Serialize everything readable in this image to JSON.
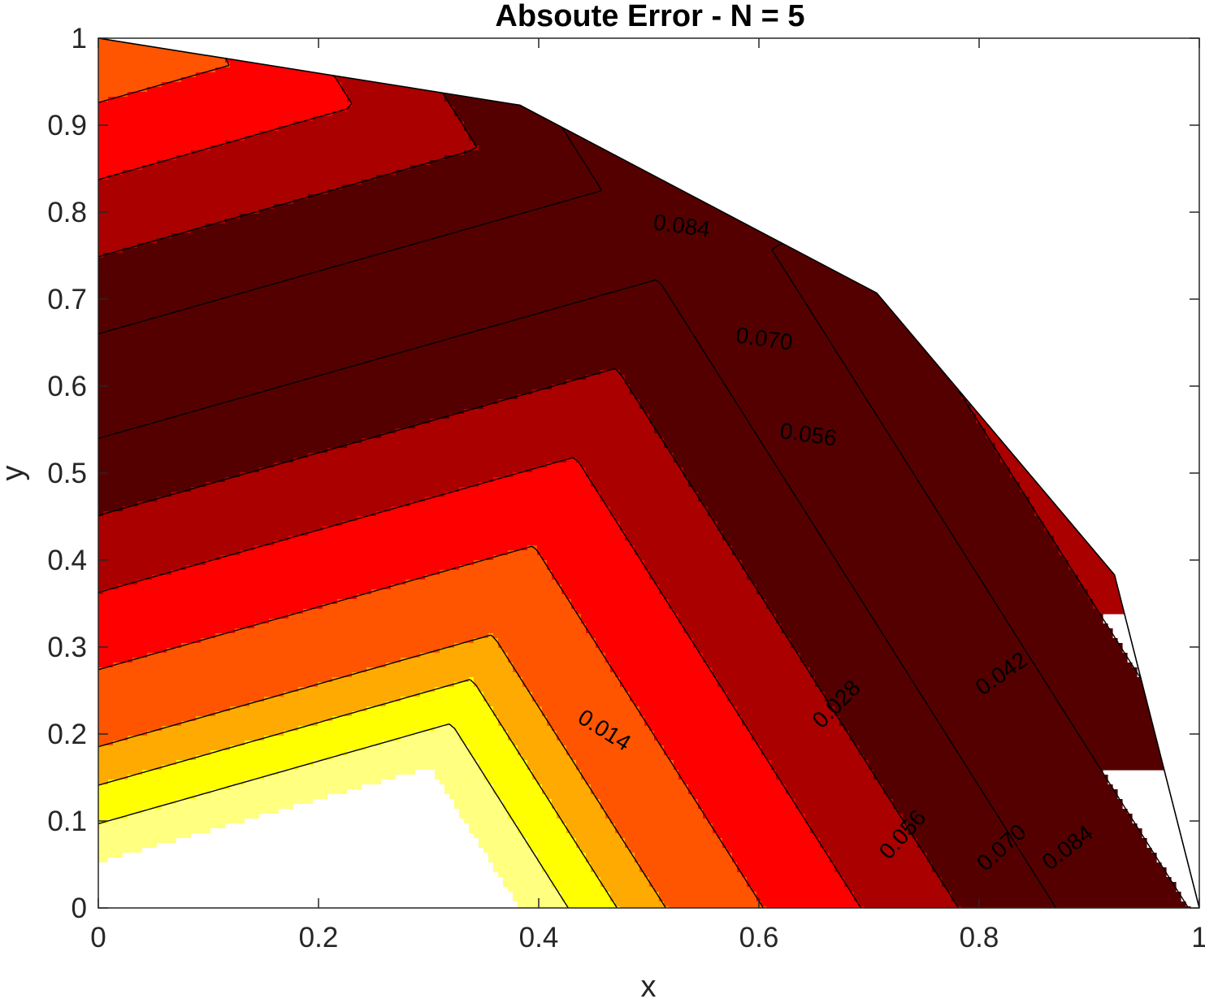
{
  "chart_data": {
    "type": "filled-contour",
    "title": "Absoute Error - N = 5",
    "xlabel": "x",
    "ylabel": "y",
    "xlim": [
      0,
      1
    ],
    "ylim": [
      0,
      1
    ],
    "x_ticks": [
      "0",
      "0.2",
      "0.4",
      "0.6",
      "0.8",
      "1"
    ],
    "y_ticks": [
      "0",
      "0.1",
      "0.2",
      "0.3",
      "0.4",
      "0.5",
      "0.6",
      "0.7",
      "0.8",
      "0.9",
      "1"
    ],
    "grid": false,
    "colormap": "hot (reversed)",
    "domain_boundary": [
      [
        0,
        1
      ],
      [
        0.383,
        0.923
      ],
      [
        0.707,
        0.707
      ],
      [
        0.923,
        0.383
      ],
      [
        1,
        0
      ],
      [
        0,
        0
      ]
    ],
    "levels": [
      0.014,
      0.028,
      0.042,
      0.056,
      0.07,
      0.084
    ],
    "level_colors": [
      "#ffffff",
      "#ffff80",
      "#ffff00",
      "#ffaa00",
      "#ff5500",
      "#ff0000",
      "#aa0000",
      "#550000"
    ],
    "level_boundaries": [
      0.007,
      0.014,
      0.021,
      0.028,
      0.042,
      0.056,
      0.07,
      0.084,
      0.091
    ],
    "contour_labels": [
      {
        "text": "0.014",
        "x": 0.46,
        "y": 0.205,
        "angle": 32
      },
      {
        "text": "0.028",
        "x": 0.67,
        "y": 0.235,
        "angle": -45
      },
      {
        "text": "0.042",
        "x": 0.82,
        "y": 0.27,
        "angle": -35
      },
      {
        "text": "0.056",
        "x": 0.73,
        "y": 0.085,
        "angle": -48
      },
      {
        "text": "0.070",
        "x": 0.82,
        "y": 0.07,
        "angle": -42
      },
      {
        "text": "0.084",
        "x": 0.88,
        "y": 0.07,
        "angle": -38
      },
      {
        "text": "0.056",
        "x": 0.645,
        "y": 0.545,
        "angle": 8
      },
      {
        "text": "0.070",
        "x": 0.605,
        "y": 0.655,
        "angle": 8
      },
      {
        "text": "0.084",
        "x": 0.53,
        "y": 0.785,
        "angle": 8
      }
    ]
  }
}
